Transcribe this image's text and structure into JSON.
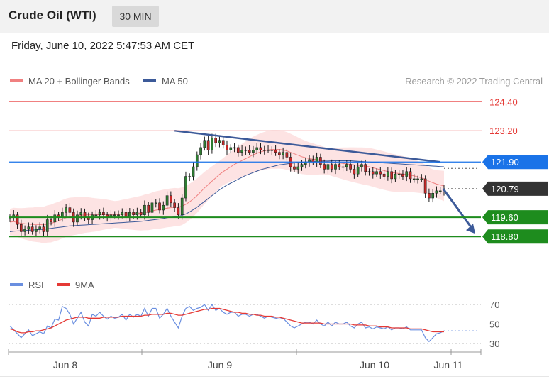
{
  "header": {
    "title": "Crude Oil (WTI)",
    "timeframe": "30 MIN",
    "timestamp": "Friday, June 10, 2022 5:47:53 AM CET"
  },
  "colors": {
    "resistance": "#f08080",
    "resistance_text": "#e53935",
    "ma50": "#3c5a99",
    "pivot": "#1a73e8",
    "support": "#1e8c1e",
    "last_price_bg": "#333333",
    "bollinger_fill": "#fde0e0",
    "rsi": "#6a8fe0",
    "rsi_ma": "#e53935"
  },
  "chart_data": [
    {
      "type": "candlestick",
      "legend": [
        {
          "label": "MA 20 + Bollinger Bands",
          "color": "#f08080"
        },
        {
          "label": "MA 50",
          "color": "#3c5a99"
        }
      ],
      "source": "Research © 2022 Trading Central",
      "x_labels": [
        "Jun 8",
        "Jun 9",
        "Jun 10",
        "Jun 11"
      ],
      "ylim": [
        118.6,
        124.8
      ],
      "levels": [
        {
          "value": 124.4,
          "label": "124.40",
          "kind": "resistance"
        },
        {
          "value": 123.2,
          "label": "123.20",
          "kind": "resistance"
        },
        {
          "value": 121.9,
          "label": "121.90",
          "kind": "pivot"
        },
        {
          "value": 120.79,
          "label": "120.79",
          "kind": "last"
        },
        {
          "value": 119.6,
          "label": "119.60",
          "kind": "support"
        },
        {
          "value": 118.8,
          "label": "118.80",
          "kind": "support"
        }
      ],
      "close": [
        119.6,
        119.7,
        119.3,
        119.0,
        119.1,
        119.2,
        119.0,
        119.1,
        119.2,
        119.0,
        119.5,
        119.4,
        119.7,
        119.6,
        119.8,
        120.0,
        119.8,
        119.4,
        119.7,
        119.8,
        119.6,
        119.5,
        119.7,
        119.7,
        119.8,
        119.7,
        119.6,
        119.7,
        119.7,
        119.7,
        119.8,
        119.6,
        119.8,
        119.7,
        119.8,
        119.7,
        120.1,
        119.8,
        120.2,
        120.2,
        119.9,
        120.1,
        120.5,
        120.2,
        120.0,
        119.7,
        120.4,
        121.3,
        121.3,
        121.7,
        122.2,
        122.5,
        122.8,
        122.4,
        122.9,
        122.7,
        122.8,
        122.6,
        122.4,
        122.5,
        122.5,
        122.3,
        122.4,
        122.4,
        122.3,
        122.4,
        122.5,
        122.4,
        122.4,
        122.4,
        122.4,
        122.3,
        122.2,
        122.3,
        122.1,
        121.7,
        121.6,
        121.7,
        121.8,
        121.9,
        122.0,
        121.9,
        122.1,
        121.8,
        121.6,
        121.8,
        121.6,
        121.8,
        121.7,
        121.7,
        121.8,
        121.6,
        121.4,
        121.7,
        121.8,
        121.5,
        121.5,
        121.4,
        121.5,
        121.4,
        121.3,
        121.5,
        121.2,
        121.4,
        121.4,
        121.3,
        121.5,
        121.2,
        121.2,
        121.2,
        121.2,
        120.6,
        120.4,
        120.6,
        120.7,
        120.7,
        120.79
      ],
      "ma20": [
        119.4,
        119.42,
        119.38,
        119.35,
        119.33,
        119.32,
        119.3,
        119.3,
        119.3,
        119.28,
        119.32,
        119.34,
        119.4,
        119.45,
        119.52,
        119.58,
        119.62,
        119.64,
        119.66,
        119.68,
        119.7,
        119.7,
        119.7,
        119.7,
        119.71,
        119.72,
        119.72,
        119.72,
        119.72,
        119.72,
        119.73,
        119.73,
        119.74,
        119.75,
        119.76,
        119.77,
        119.8,
        119.82,
        119.86,
        119.9,
        119.92,
        119.95,
        119.98,
        120.0,
        120.02,
        120.02,
        120.06,
        120.14,
        120.24,
        120.36,
        120.5,
        120.66,
        120.82,
        120.96,
        121.1,
        121.24,
        121.38,
        121.5,
        121.6,
        121.7,
        121.8,
        121.88,
        121.96,
        122.04,
        122.12,
        122.2,
        122.26,
        122.32,
        122.36,
        122.4,
        122.42,
        122.42,
        122.42,
        122.4,
        122.36,
        122.3,
        122.24,
        122.18,
        122.12,
        122.08,
        122.04,
        122.02,
        122.0,
        121.98,
        121.95,
        121.92,
        121.9,
        121.88,
        121.86,
        121.84,
        121.82,
        121.8,
        121.78,
        121.76,
        121.74,
        121.72,
        121.7,
        121.66,
        121.62,
        121.58,
        121.54,
        121.5,
        121.46,
        121.44,
        121.42,
        121.4,
        121.38,
        121.36,
        121.32,
        121.28,
        121.24,
        121.18,
        121.1,
        121.04,
        120.98,
        120.94,
        120.9
      ],
      "ma50": [
        119.0,
        119.02,
        119.03,
        119.04,
        119.05,
        119.06,
        119.07,
        119.08,
        119.09,
        119.1,
        119.12,
        119.14,
        119.16,
        119.18,
        119.2,
        119.22,
        119.24,
        119.25,
        119.26,
        119.27,
        119.28,
        119.29,
        119.3,
        119.31,
        119.32,
        119.33,
        119.34,
        119.35,
        119.36,
        119.37,
        119.38,
        119.39,
        119.4,
        119.41,
        119.42,
        119.43,
        119.45,
        119.47,
        119.49,
        119.51,
        119.53,
        119.55,
        119.58,
        119.6,
        119.62,
        119.64,
        119.68,
        119.74,
        119.82,
        119.92,
        120.02,
        120.14,
        120.26,
        120.38,
        120.5,
        120.62,
        120.74,
        120.84,
        120.94,
        121.02,
        121.1,
        121.18,
        121.26,
        121.34,
        121.4,
        121.46,
        121.52,
        121.58,
        121.62,
        121.66,
        121.7,
        121.74,
        121.78,
        121.8,
        121.82,
        121.84,
        121.86,
        121.88,
        121.89,
        121.9,
        121.91,
        121.92,
        121.93,
        121.93,
        121.94,
        121.94,
        121.95,
        121.95,
        121.95,
        121.95,
        121.95,
        121.95,
        121.94,
        121.93,
        121.92,
        121.91,
        121.9,
        121.89,
        121.88,
        121.87,
        121.86,
        121.85,
        121.84,
        121.83,
        121.82,
        121.81,
        121.8,
        121.79,
        121.78,
        121.77,
        121.76,
        121.75,
        121.74,
        121.73,
        121.72,
        121.71,
        121.7
      ],
      "trendline": {
        "from": [
          44,
          123.2
        ],
        "to": [
          115,
          121.9
        ]
      },
      "forecast_arrow": {
        "from": [
          115,
          120.79
        ],
        "to": [
          121,
          118.8
        ]
      }
    },
    {
      "type": "line",
      "legend": [
        {
          "label": "RSI",
          "color": "#6a8fe0"
        },
        {
          "label": "9MA",
          "color": "#e53935"
        }
      ],
      "ylim": [
        22,
        78
      ],
      "y_ticks": [
        70,
        50,
        30
      ],
      "rsi": [
        48,
        44,
        40,
        36,
        40,
        44,
        38,
        40,
        42,
        40,
        48,
        46,
        55,
        54,
        68,
        66,
        60,
        50,
        56,
        62,
        52,
        48,
        60,
        58,
        62,
        58,
        55,
        58,
        56,
        57,
        60,
        54,
        60,
        57,
        60,
        58,
        66,
        58,
        66,
        66,
        56,
        60,
        66,
        58,
        52,
        46,
        58,
        66,
        68,
        64,
        66,
        67,
        70,
        64,
        70,
        64,
        66,
        62,
        60,
        62,
        62,
        58,
        60,
        60,
        58,
        60,
        60,
        58,
        56,
        58,
        57,
        56,
        55,
        56,
        52,
        48,
        46,
        48,
        50,
        52,
        52,
        50,
        54,
        50,
        48,
        52,
        48,
        52,
        50,
        50,
        52,
        48,
        46,
        50,
        52,
        46,
        47,
        45,
        47,
        46,
        45,
        47,
        44,
        46,
        46,
        45,
        47,
        44,
        44,
        44,
        44,
        36,
        32,
        36,
        40,
        41,
        43
      ],
      "rsi_ma": [
        45,
        44,
        42,
        41,
        41,
        42,
        42,
        43,
        43,
        44,
        45,
        46,
        48,
        50,
        52,
        54,
        55,
        56,
        57,
        57,
        57,
        56,
        56,
        56,
        56,
        57,
        57,
        57,
        57,
        57,
        58,
        58,
        58,
        58,
        58,
        58,
        59,
        59,
        60,
        60,
        60,
        60,
        61,
        61,
        60,
        59,
        59,
        60,
        61,
        62,
        63,
        64,
        65,
        65,
        66,
        66,
        66,
        65,
        64,
        63,
        62,
        62,
        61,
        61,
        60,
        60,
        59,
        59,
        58,
        58,
        58,
        57,
        57,
        56,
        55,
        54,
        53,
        52,
        51,
        51,
        51,
        51,
        51,
        51,
        50,
        50,
        50,
        50,
        50,
        50,
        50,
        50,
        49,
        49,
        49,
        49,
        48,
        48,
        48,
        47,
        47,
        47,
        46,
        46,
        46,
        46,
        46,
        45,
        45,
        45,
        45,
        44,
        43,
        42,
        42,
        42,
        42
      ]
    }
  ]
}
